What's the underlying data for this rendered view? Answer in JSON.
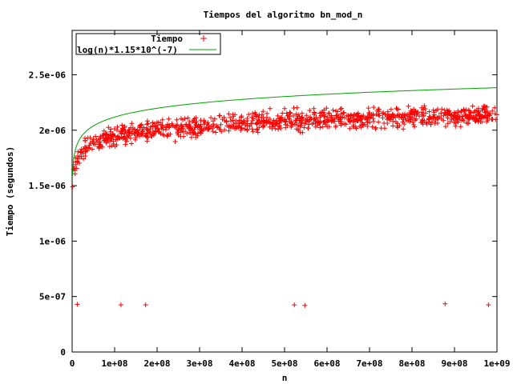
{
  "chart_data": {
    "type": "scatter",
    "title": "Tiempos del algoritmo bn_mod_n",
    "xlabel": "n",
    "ylabel": "Tiempo (segundos)",
    "xlim": [
      0,
      1000000000
    ],
    "ylim": [
      0,
      2.9e-06
    ],
    "x_ticks": [
      0,
      100000000,
      200000000,
      300000000,
      400000000,
      500000000,
      600000000,
      700000000,
      800000000,
      900000000,
      1000000000
    ],
    "x_tick_labels": [
      "0",
      "1e+08",
      "2e+08",
      "3e+08",
      "4e+08",
      "5e+08",
      "6e+08",
      "7e+08",
      "8e+08",
      "9e+08",
      "1e+09"
    ],
    "y_ticks": [
      0,
      5e-07,
      1e-06,
      1.5e-06,
      2e-06,
      2.5e-06
    ],
    "y_tick_labels": [
      "0",
      "5e-07",
      "1e-06",
      "1.5e-06",
      "2e-06",
      "2.5e-06"
    ],
    "grid": false,
    "legend_position": "top-left",
    "series": [
      {
        "name": "Tiempo",
        "kind": "points",
        "marker": "plus",
        "color": "#ff0000",
        "description": "Roughly 1000 dense measurements between 1.6e-06 and 2.3e-06, with a few outliers near 4.3e-07",
        "points": [
          [
            1000000,
            1.49e-06
          ],
          [
            3000000,
            1.65e-06
          ],
          [
            5000000,
            1.66e-06
          ],
          [
            8000000,
            1.69e-06
          ],
          [
            12000000,
            1.72e-06
          ],
          [
            20000000,
            1.8e-06
          ],
          [
            30000000,
            1.85e-06
          ],
          [
            50000000,
            1.88e-06
          ],
          [
            80000000,
            1.92e-06
          ],
          [
            100000000,
            1.95e-06
          ],
          [
            150000000,
            1.98e-06
          ],
          [
            200000000,
            2.01e-06
          ],
          [
            250000000,
            2e-06
          ],
          [
            300000000,
            2.03e-06
          ],
          [
            350000000,
            2.05e-06
          ],
          [
            400000000,
            2.06e-06
          ],
          [
            450000000,
            2.08e-06
          ],
          [
            500000000,
            2.09e-06
          ],
          [
            550000000,
            2.09e-06
          ],
          [
            600000000,
            2.1e-06
          ],
          [
            650000000,
            2.1e-06
          ],
          [
            700000000,
            2.11e-06
          ],
          [
            750000000,
            2.11e-06
          ],
          [
            800000000,
            2.12e-06
          ],
          [
            850000000,
            2.12e-06
          ],
          [
            900000000,
            2.13e-06
          ],
          [
            950000000,
            2.13e-06
          ],
          [
            1000000000,
            2.14e-06
          ]
        ],
        "scatter_band": {
          "x_start": 5000000,
          "x_end": 1000000000,
          "count": 1000,
          "spread": 1.3e-07
        },
        "outliers": [
          [
            12000000,
            4.3e-07
          ],
          [
            115000000,
            4.25e-07
          ],
          [
            173000000,
            4.25e-07
          ],
          [
            523000000,
            4.25e-07
          ],
          [
            548000000,
            4.2e-07
          ],
          [
            878000000,
            4.35e-07
          ],
          [
            980000000,
            4.25e-07
          ]
        ]
      },
      {
        "name": "log(n)*1.15*10^(-7)",
        "kind": "line",
        "color": "#00a000",
        "formula": "log(n)*1.15e-07"
      }
    ]
  }
}
